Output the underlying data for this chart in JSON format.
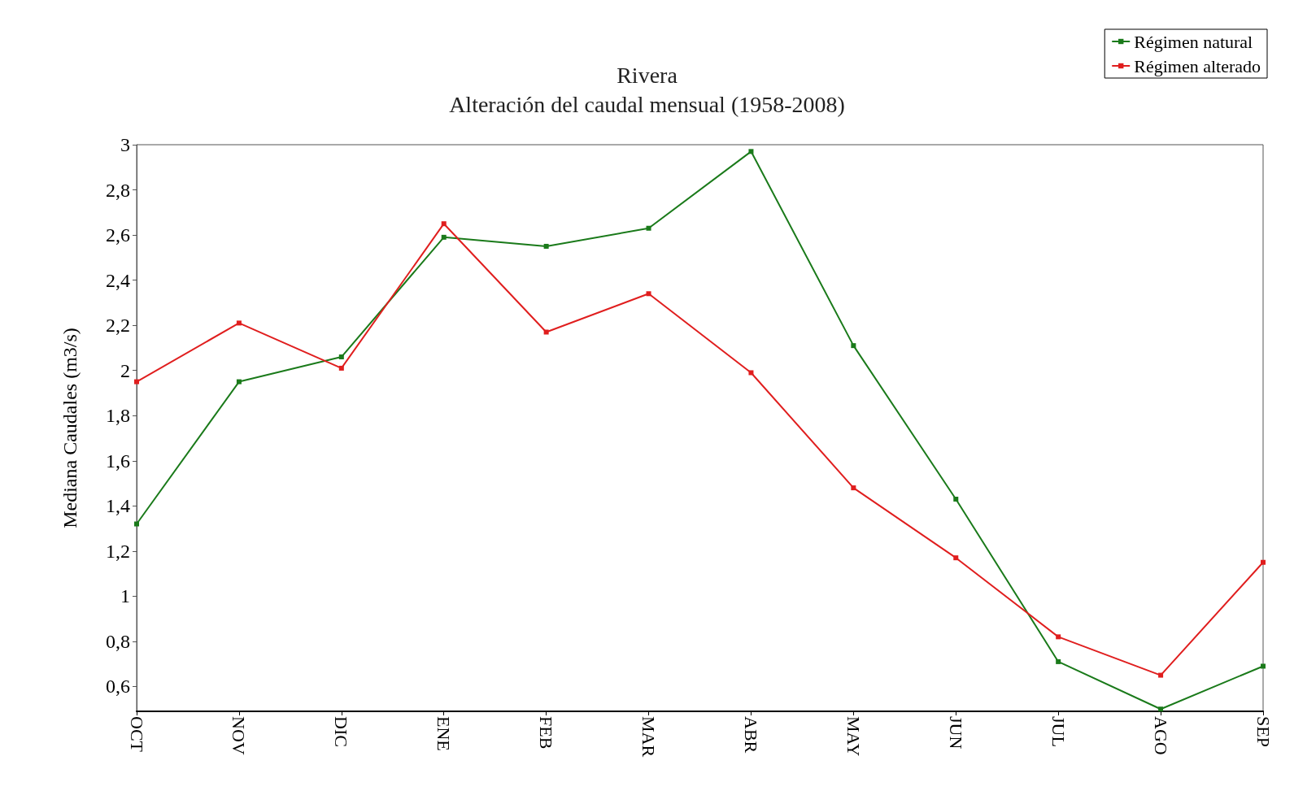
{
  "chart_data": {
    "type": "line",
    "title": "Rivera",
    "subtitle": "Alteración del caudal mensual (1958-2008)",
    "ylabel": "Mediana Caudales (m3/s)",
    "categories": [
      "OCT",
      "NOV",
      "DIC",
      "ENE",
      "FEB",
      "MAR",
      "ABR",
      "MAY",
      "JUN",
      "JUL",
      "AGO",
      "SEP"
    ],
    "series": [
      {
        "name": "Régimen natural",
        "color": "#1a7a1a",
        "values": [
          1.32,
          1.95,
          2.06,
          2.59,
          2.55,
          2.63,
          2.97,
          2.11,
          1.43,
          0.71,
          0.5,
          0.69
        ]
      },
      {
        "name": "Régimen alterado",
        "color": "#e01e1e",
        "values": [
          1.95,
          2.21,
          2.01,
          2.65,
          2.17,
          2.34,
          1.99,
          1.48,
          1.17,
          0.82,
          0.65,
          1.15
        ]
      }
    ],
    "ylim": [
      0.49,
      3
    ],
    "yticks": [
      {
        "value": 0.6,
        "label": "0,6"
      },
      {
        "value": 0.8,
        "label": "0,8"
      },
      1,
      {
        "value": 1.2,
        "label": "1,2"
      },
      {
        "value": 1.4,
        "label": "1,4"
      },
      {
        "value": 1.6,
        "label": "1,6"
      },
      {
        "value": 1.8,
        "label": "1,8"
      },
      2,
      {
        "value": 2.2,
        "label": "2,2"
      },
      {
        "value": 2.4,
        "label": "2,4"
      },
      {
        "value": 2.6,
        "label": "2,6"
      },
      {
        "value": 2.8,
        "label": "2,8"
      },
      3
    ],
    "grid": false,
    "legend": "top right",
    "marker": "square",
    "line_style": "solid"
  }
}
